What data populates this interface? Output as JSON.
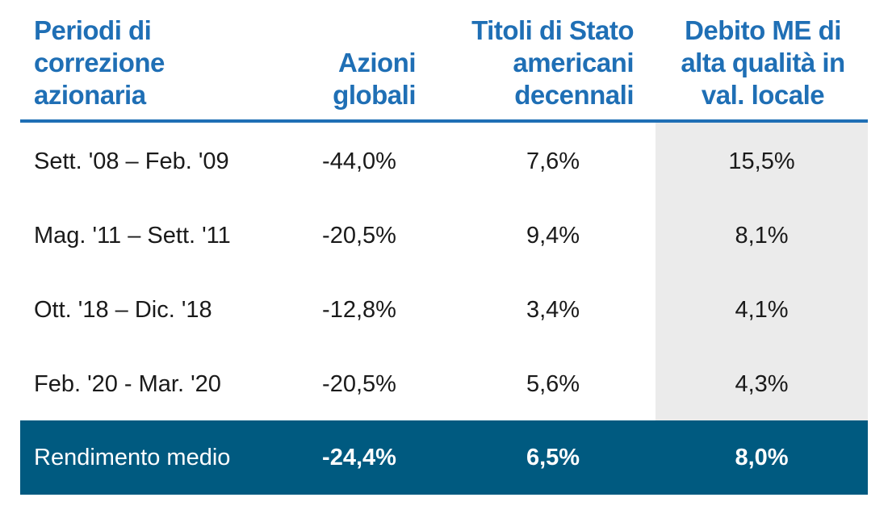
{
  "headers": {
    "period": [
      "Periodi di",
      "correzione",
      "azionaria"
    ],
    "global_equities": [
      "Azioni",
      "globali"
    ],
    "us_treasuries": [
      "Titoli di Stato",
      "americani",
      "decennali"
    ],
    "em_debt": [
      "Debito ME di",
      "alta qualità in",
      "val. locale"
    ]
  },
  "rows": [
    {
      "period": "Sett. '08 – Feb. '09",
      "global_equities": "-44,0%",
      "us_treasuries": "7,6%",
      "em_debt": "15,5%"
    },
    {
      "period": "Mag. '11 – Sett. '11",
      "global_equities": "-20,5%",
      "us_treasuries": "9,4%",
      "em_debt": "8,1%"
    },
    {
      "period": "Ott. '18 – Dic. '18",
      "global_equities": "-12,8%",
      "us_treasuries": "3,4%",
      "em_debt": "4,1%"
    },
    {
      "period": "Feb. '20 - Mar. '20",
      "global_equities": "-20,5%",
      "us_treasuries": "5,6%",
      "em_debt": "4,3%"
    }
  ],
  "footer": {
    "label": "Rendimento medio",
    "global_equities": "-24,4%",
    "us_treasuries": "6,5%",
    "em_debt": "8,0%"
  },
  "colors": {
    "header_text": "#1f6fb5",
    "footer_bg": "#005a80",
    "highlight_column_bg": "#ebebeb"
  }
}
